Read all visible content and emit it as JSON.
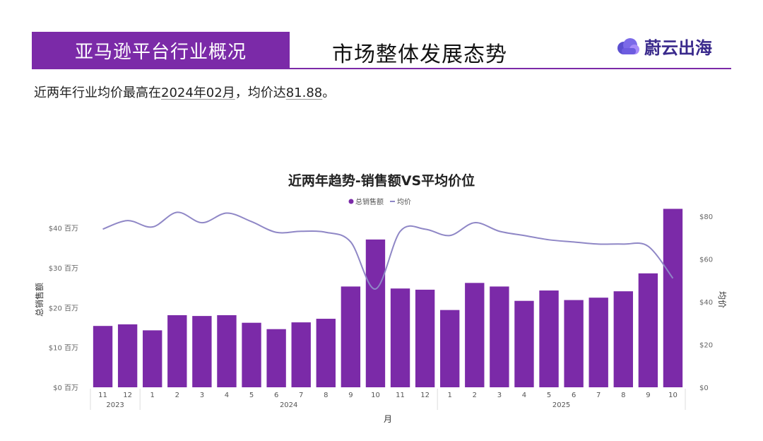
{
  "header": {
    "section_label": "亚马逊平台行业概况",
    "title": "市场整体发展态势",
    "logo_text": "蔚云出海"
  },
  "summary": {
    "prefix": "近两年行业均价最高在",
    "peak_month": "2024年02月",
    "middle": "，均价达",
    "peak_value": "81.88",
    "suffix": "。"
  },
  "colors": {
    "brand": "#7b2aa8",
    "bar": "#7b2aa8",
    "line": "#8f87c6",
    "logo": "#5b4fd0"
  },
  "chart_data": {
    "type": "bar",
    "title": "近两年趋势-销售额VS平均价位",
    "legend": [
      {
        "label": "总销售额",
        "marker": "dot"
      },
      {
        "label": "均价",
        "marker": "line"
      }
    ],
    "legend_position": "top-center",
    "xlabel": "月",
    "ylabel": "总销售额",
    "y2label": "均价",
    "categories": [
      "11",
      "12",
      "1",
      "2",
      "3",
      "4",
      "5",
      "6",
      "7",
      "8",
      "9",
      "10",
      "11",
      "12",
      "1",
      "2",
      "3",
      "4",
      "5",
      "6",
      "7",
      "8",
      "9",
      "10"
    ],
    "year_groups": [
      {
        "label": "2023",
        "count": 2
      },
      {
        "label": "2024",
        "count": 12
      },
      {
        "label": "2025",
        "count": 10
      }
    ],
    "yticks": [
      "$0 百万",
      "$10 百万",
      "$20 百万",
      "$30 百万",
      "$40 百万"
    ],
    "y2ticks": [
      "$0",
      "$20",
      "$40",
      "$60",
      "$80"
    ],
    "ylim": [
      0,
      44
    ],
    "y2lim": [
      0,
      82
    ],
    "series": [
      {
        "name": "总销售额",
        "type": "bar",
        "axis": "left",
        "values": [
          15.4,
          15.8,
          14.3,
          18.1,
          17.9,
          18.1,
          16.2,
          14.6,
          16.3,
          17.2,
          25.3,
          37.1,
          24.8,
          24.5,
          19.4,
          26.2,
          25.3,
          21.7,
          24.3,
          21.9,
          22.5,
          24.1,
          28.6,
          44.8
        ]
      },
      {
        "name": "均价",
        "type": "line",
        "axis": "right",
        "values": [
          74,
          78,
          75,
          81.88,
          77,
          81.5,
          77.5,
          72.5,
          73,
          72.5,
          68,
          46,
          73,
          74,
          71,
          77,
          73,
          71,
          69,
          68,
          67,
          67,
          66,
          51
        ]
      }
    ]
  }
}
